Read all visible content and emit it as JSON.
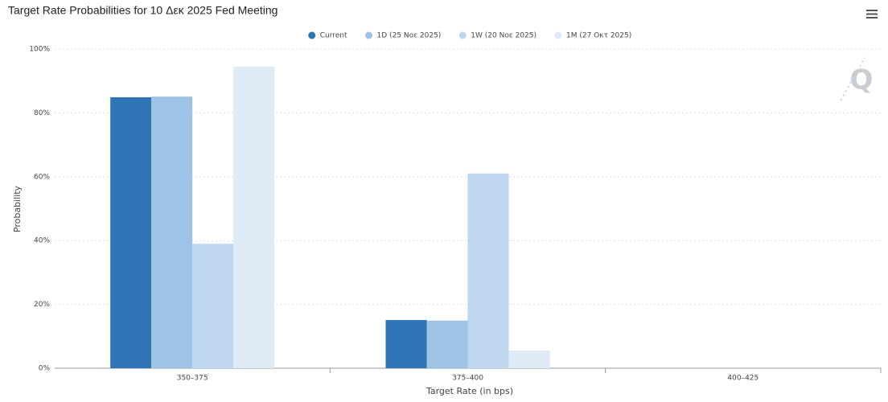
{
  "chart_data": {
    "type": "bar",
    "title": "Target Rate Probabilities for 10 Δεκ 2025 Fed Meeting",
    "logo": "Q",
    "x_label": "Target Rate (in bps)",
    "y_label": "Probability",
    "categories": [
      "350–375",
      "375–400",
      "400–425"
    ],
    "series": [
      {
        "name": "Current",
        "color": "#2e75b6",
        "values": [
          84.9,
          15.1,
          0
        ]
      },
      {
        "name": "1D (25 Νοε 2025)",
        "color": "#9dc3e6",
        "values": [
          85.1,
          14.9,
          0
        ]
      },
      {
        "name": "1W (20 Νοε 2025)",
        "color": "#bdd7ee",
        "values": [
          39.0,
          61.0,
          0
        ]
      },
      {
        "name": "1M (27 Οκτ 2025)",
        "color": "#deebf7",
        "values": [
          94.5,
          5.5,
          0
        ]
      }
    ],
    "ylim": [
      0,
      100
    ],
    "yticks": [
      {
        "value": 0,
        "label": "0%"
      },
      {
        "value": 20,
        "label": "20%"
      },
      {
        "value": 40,
        "label": "40%"
      },
      {
        "value": 60,
        "label": "60%"
      },
      {
        "value": 80,
        "label": "80%"
      },
      {
        "value": 100,
        "label": "100%"
      }
    ],
    "grid": true,
    "legend": "top"
  }
}
